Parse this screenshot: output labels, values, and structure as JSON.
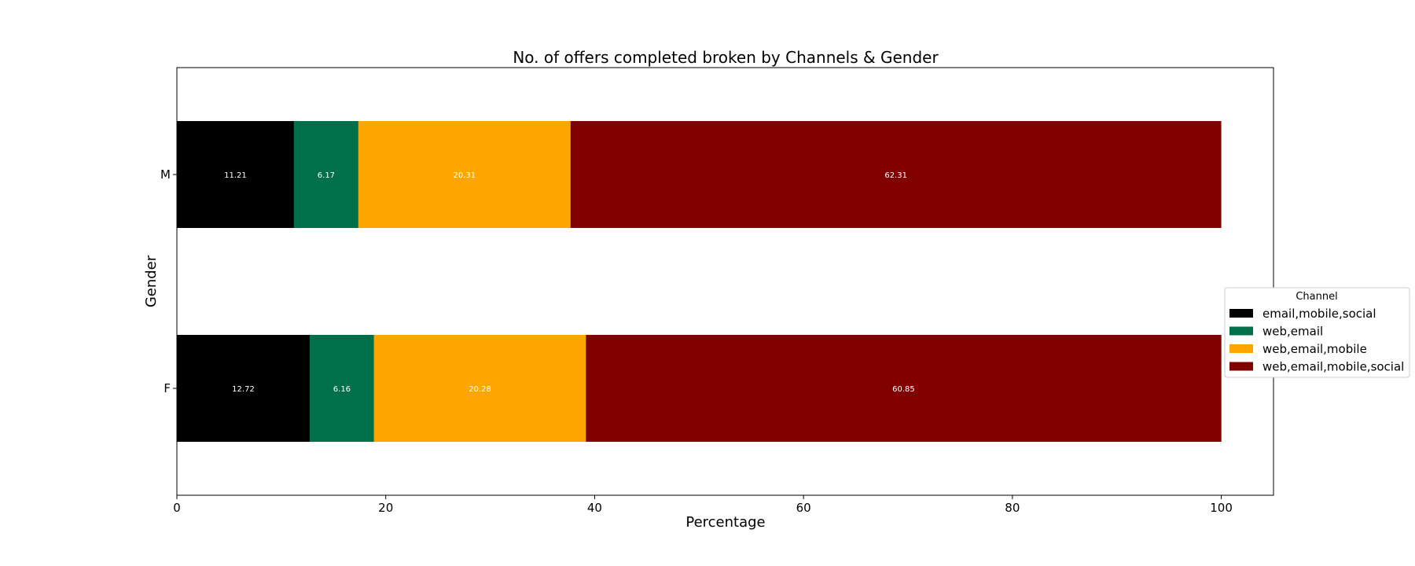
{
  "chart_data": {
    "type": "bar",
    "orientation": "horizontal",
    "stacked": true,
    "title": "No. of offers completed broken by Channels & Gender",
    "xlabel": "Percentage",
    "ylabel": "Gender",
    "xlim": [
      0,
      105
    ],
    "xticks": [
      0,
      20,
      40,
      60,
      80,
      100
    ],
    "xtick_labels": [
      "0",
      "20",
      "40",
      "60",
      "80",
      "100"
    ],
    "categories": [
      "F",
      "M"
    ],
    "series": [
      {
        "name": "email,mobile,social",
        "color": "#000000",
        "values": [
          12.72,
          11.21
        ],
        "labels": [
          "12.72",
          "11.21"
        ]
      },
      {
        "name": "web,email",
        "color": "#00704a",
        "values": [
          6.16,
          6.17
        ],
        "labels": [
          "6.16",
          "6.17"
        ]
      },
      {
        "name": "web,email,mobile",
        "color": "#ffa500",
        "values": [
          20.28,
          20.31
        ],
        "labels": [
          "20.28",
          "20.31"
        ]
      },
      {
        "name": "web,email,mobile,social",
        "color": "#800000",
        "values": [
          60.85,
          62.31
        ],
        "labels": [
          "60.85",
          "62.31"
        ]
      }
    ],
    "legend": {
      "title": "Channel",
      "position": "center-right"
    },
    "grid": false
  }
}
